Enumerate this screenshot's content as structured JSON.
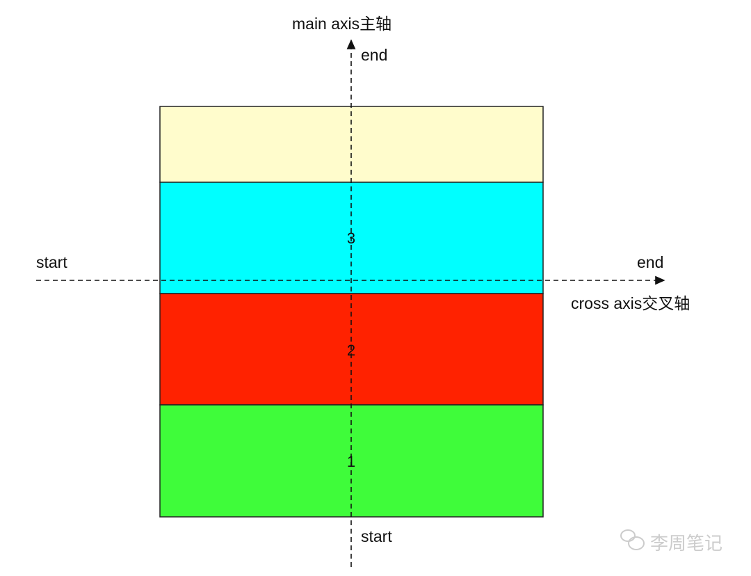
{
  "main_axis": {
    "label": "main axis主轴",
    "start": "start",
    "end": "end"
  },
  "cross_axis": {
    "label": "cross axis交叉轴",
    "start": "start",
    "end": "end"
  },
  "items": [
    {
      "label": "",
      "color": "#fffccc"
    },
    {
      "label": "3",
      "color": "#00ffff"
    },
    {
      "label": "2",
      "color": "#ff2200"
    },
    {
      "label": "1",
      "color": "#3ffc3a"
    }
  ],
  "watermark": {
    "text": "李周笔记",
    "icon": "wechat-icon"
  }
}
